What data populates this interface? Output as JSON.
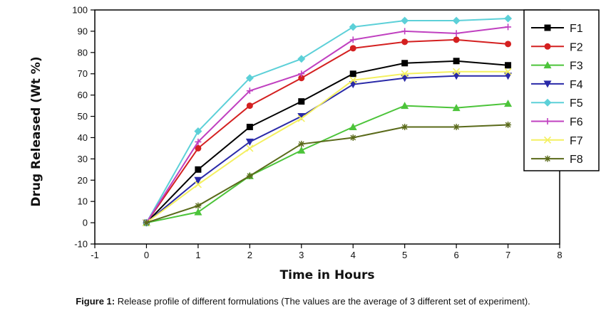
{
  "chart_data": {
    "type": "line",
    "xlabel": "Time in Hours",
    "ylabel": "Drug Released (Wt %)",
    "xlim": [
      -1,
      8
    ],
    "ylim": [
      -10,
      100
    ],
    "x_ticks": [
      -1,
      0,
      1,
      2,
      3,
      4,
      5,
      6,
      7,
      8
    ],
    "y_ticks": [
      -10,
      0,
      10,
      20,
      30,
      40,
      50,
      60,
      70,
      80,
      90,
      100
    ],
    "grid": false,
    "legend_position": "right",
    "x": [
      0,
      1,
      2,
      3,
      4,
      5,
      6,
      7
    ],
    "series": [
      {
        "name": "F1",
        "color": "#000000",
        "marker": "square",
        "values": [
          0,
          25,
          45,
          57,
          70,
          75,
          76,
          74
        ]
      },
      {
        "name": "F2",
        "color": "#d42020",
        "marker": "circle",
        "values": [
          0,
          35,
          55,
          68,
          82,
          85,
          86,
          84
        ]
      },
      {
        "name": "F3",
        "color": "#4cc43a",
        "marker": "triangle-up",
        "values": [
          0,
          5,
          22,
          34,
          45,
          55,
          54,
          56
        ]
      },
      {
        "name": "F4",
        "color": "#2a2aa8",
        "marker": "triangle-down",
        "values": [
          0,
          20,
          38,
          50,
          65,
          68,
          69,
          69
        ]
      },
      {
        "name": "F5",
        "color": "#5cd0d8",
        "marker": "diamond",
        "values": [
          0,
          43,
          68,
          77,
          92,
          95,
          95,
          96
        ]
      },
      {
        "name": "F6",
        "color": "#c040c0",
        "marker": "plus",
        "values": [
          0,
          38,
          62,
          70,
          86,
          90,
          89,
          92
        ]
      },
      {
        "name": "F7",
        "color": "#f4f060",
        "marker": "x",
        "values": [
          0,
          18,
          35,
          49,
          67,
          70,
          71,
          71
        ]
      },
      {
        "name": "F8",
        "color": "#5a6a1a",
        "marker": "star",
        "values": [
          0,
          8,
          22,
          37,
          40,
          45,
          45,
          46
        ]
      }
    ]
  },
  "caption": {
    "label": "Figure 1:",
    "text": " Release profile of different formulations (The values are the average of 3 different set of experiment)."
  }
}
